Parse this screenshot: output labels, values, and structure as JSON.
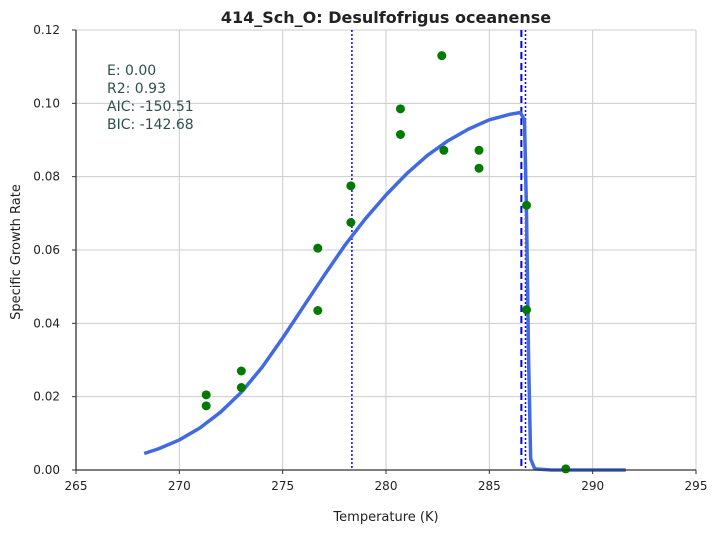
{
  "chart_data": {
    "type": "scatter",
    "title": "414_Sch_O: Desulfofrigus oceanense",
    "xlabel": "Temperature (K)",
    "ylabel": "Specific Growth Rate",
    "xlim": [
      265,
      295
    ],
    "ylim": [
      0,
      0.12
    ],
    "xticks": [
      265,
      270,
      275,
      280,
      285,
      290,
      295
    ],
    "yticks": [
      0.0,
      0.02,
      0.04,
      0.06,
      0.08,
      0.1,
      0.12
    ],
    "xtick_labels": [
      "265",
      "270",
      "275",
      "280",
      "285",
      "290",
      "295"
    ],
    "ytick_labels": [
      "0.00",
      "0.02",
      "0.04",
      "0.06",
      "0.08",
      "0.10",
      "0.12"
    ],
    "grid": true,
    "annotations": [
      "E:  0.00",
      "R2:  0.93",
      "AIC: -150.51",
      "BIC: -142.68"
    ],
    "observations": {
      "color": "#007a00",
      "points": [
        [
          271.3,
          0.0205
        ],
        [
          271.3,
          0.0175
        ],
        [
          273.0,
          0.027
        ],
        [
          273.0,
          0.0225
        ],
        [
          276.7,
          0.0605
        ],
        [
          276.7,
          0.0435
        ],
        [
          278.3,
          0.0775
        ],
        [
          278.3,
          0.0675
        ],
        [
          280.7,
          0.0985
        ],
        [
          280.7,
          0.0915
        ],
        [
          282.7,
          0.113
        ],
        [
          282.8,
          0.0872
        ],
        [
          284.5,
          0.0872
        ],
        [
          284.5,
          0.0823
        ],
        [
          286.8,
          0.0722
        ],
        [
          286.8,
          0.0437
        ],
        [
          288.7,
          0.0003
        ]
      ]
    },
    "fit_curve": {
      "color": "#4169e1",
      "points": [
        [
          268.3,
          0.0045
        ],
        [
          269.0,
          0.0058
        ],
        [
          270.0,
          0.0082
        ],
        [
          271.0,
          0.0115
        ],
        [
          272.0,
          0.0158
        ],
        [
          273.0,
          0.0212
        ],
        [
          274.0,
          0.028
        ],
        [
          275.0,
          0.036
        ],
        [
          276.0,
          0.0445
        ],
        [
          277.0,
          0.053
        ],
        [
          278.0,
          0.0612
        ],
        [
          279.0,
          0.0685
        ],
        [
          280.0,
          0.075
        ],
        [
          281.0,
          0.0808
        ],
        [
          282.0,
          0.0858
        ],
        [
          283.0,
          0.0898
        ],
        [
          284.0,
          0.093
        ],
        [
          285.0,
          0.0955
        ],
        [
          286.0,
          0.097
        ],
        [
          286.5,
          0.0975
        ],
        [
          286.7,
          0.0955
        ],
        [
          286.8,
          0.07
        ],
        [
          286.9,
          0.03
        ],
        [
          287.0,
          0.003
        ],
        [
          287.2,
          0.0003
        ],
        [
          288.0,
          0.0
        ],
        [
          290.0,
          0.0
        ],
        [
          291.6,
          0.0
        ]
      ]
    },
    "vertical_lines": [
      {
        "x": 278.35,
        "style": "dotted",
        "color": "#0000ff"
      },
      {
        "x": 286.75,
        "style": "dotted",
        "color": "#0000ff"
      },
      {
        "x": 286.55,
        "style": "dashed",
        "color": "#0000ff"
      }
    ]
  }
}
